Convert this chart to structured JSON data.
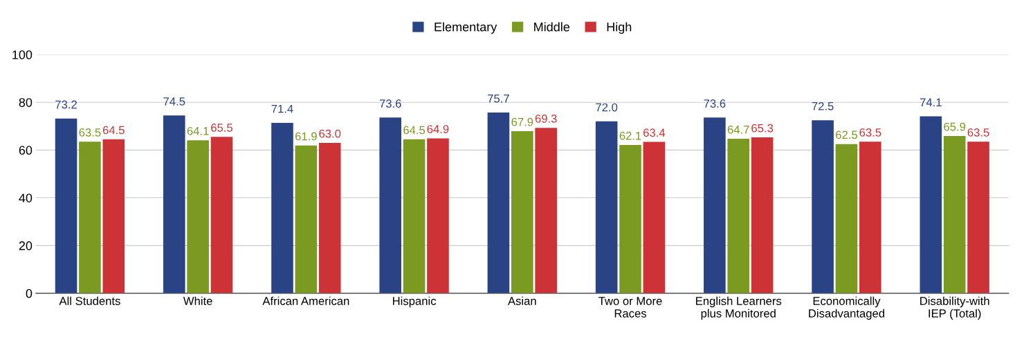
{
  "chart_data": {
    "type": "bar",
    "categories": [
      "All Students",
      "White",
      "African American",
      "Hispanic",
      "Asian",
      "Two or More\nRaces",
      "English Learners\nplus Monitored",
      "Economically\nDisadvantaged",
      "Disability-with\nIEP (Total)"
    ],
    "series": [
      {
        "name": "Elementary",
        "color": "#2a4385",
        "values": [
          73.2,
          74.5,
          71.4,
          73.6,
          75.7,
          72.0,
          73.6,
          72.5,
          74.1
        ],
        "value_labels": [
          "73.2",
          "74.5",
          "71.4",
          "73.6",
          "75.7",
          "72.0",
          "73.6",
          "72.5",
          "74.1"
        ]
      },
      {
        "name": "Middle",
        "color": "#7a9a21",
        "values": [
          63.5,
          64.1,
          61.9,
          64.5,
          67.9,
          62.1,
          64.7,
          62.5,
          65.9
        ],
        "value_labels": [
          "63.5",
          "64.1",
          "61.9",
          "64.5",
          "67.9",
          "62.1",
          "64.7",
          "62.5",
          "65.9"
        ]
      },
      {
        "name": "High",
        "color": "#cc3236",
        "values": [
          64.5,
          65.5,
          63.0,
          64.9,
          69.3,
          63.4,
          65.3,
          63.5,
          63.5
        ],
        "value_labels": [
          "64.5",
          "65.5",
          "63.0",
          "64.9",
          "69.3",
          "63.4",
          "65.3",
          "63.5",
          "63.5"
        ]
      }
    ],
    "ylim": [
      0,
      100
    ],
    "yticks": [
      0,
      20,
      40,
      60,
      80,
      100
    ],
    "grid": "y",
    "legend": "top"
  }
}
